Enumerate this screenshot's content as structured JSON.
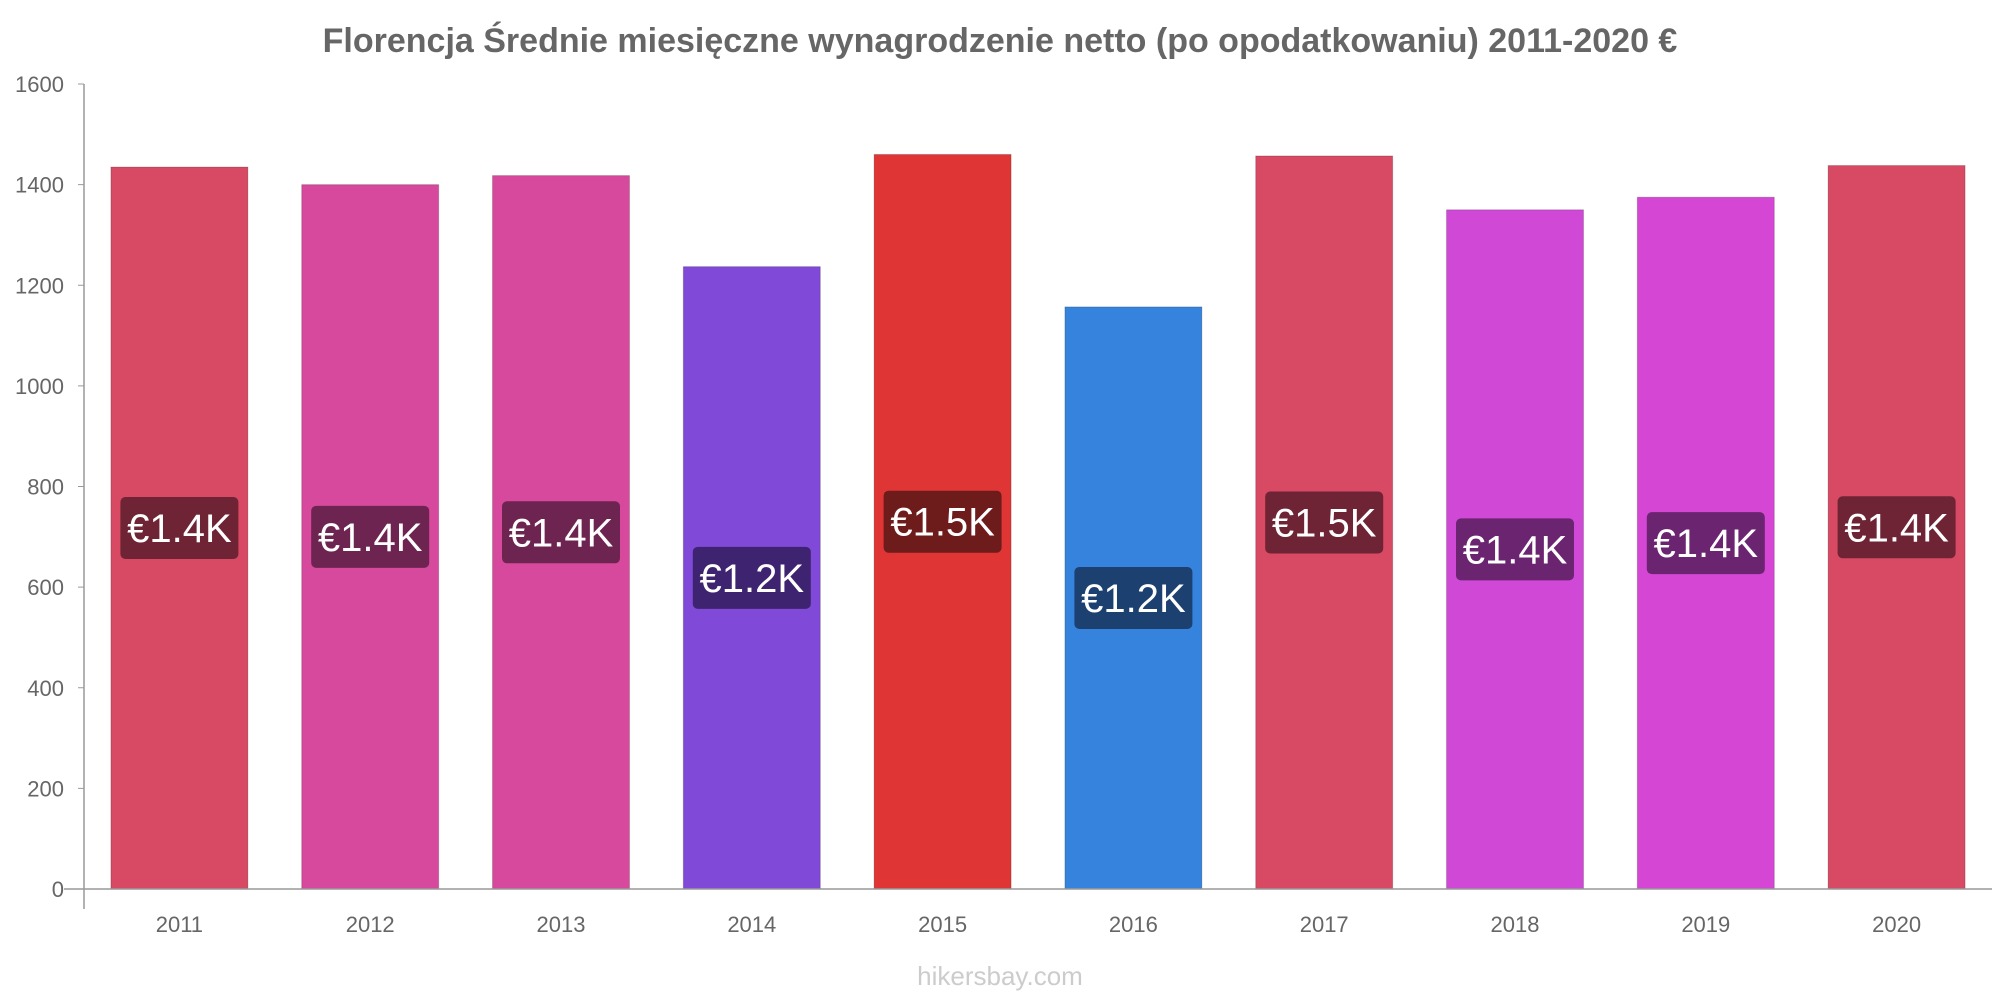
{
  "chart_data": {
    "type": "bar",
    "title": "Florencja Średnie miesięczne wynagrodzenie netto (po opodatkowaniu) 2011-2020 €",
    "xlabel": "",
    "ylabel": "",
    "categories": [
      "2011",
      "2012",
      "2013",
      "2014",
      "2015",
      "2016",
      "2017",
      "2018",
      "2019",
      "2020"
    ],
    "values": [
      1435,
      1400,
      1418,
      1237,
      1460,
      1157,
      1457,
      1350,
      1375,
      1438
    ],
    "data_labels": [
      "€1.4K",
      "€1.4K",
      "€1.4K",
      "€1.2K",
      "€1.5K",
      "€1.2K",
      "€1.5K",
      "€1.4K",
      "€1.4K",
      "€1.4K"
    ],
    "ylim": [
      0,
      1600
    ],
    "yticks": [
      0,
      200,
      400,
      600,
      800,
      1000,
      1200,
      1400,
      1600
    ],
    "bar_colors": [
      "#d84963",
      "#d6499c",
      "#d6499c",
      "#8049d8",
      "#e03535",
      "#3683dd",
      "#d84963",
      "#cf49d6",
      "#d546d4",
      "#d84963"
    ],
    "label_bg_colors": [
      "#6e2434",
      "#6e2450",
      "#6e2450",
      "#3e2470",
      "#6e1b1b",
      "#1c4070",
      "#6e2434",
      "#6a2470",
      "#6a2470",
      "#6e2434"
    ],
    "axis_color": "#999999",
    "grid": false,
    "legend": "none"
  },
  "footer": "hikersbay.com"
}
